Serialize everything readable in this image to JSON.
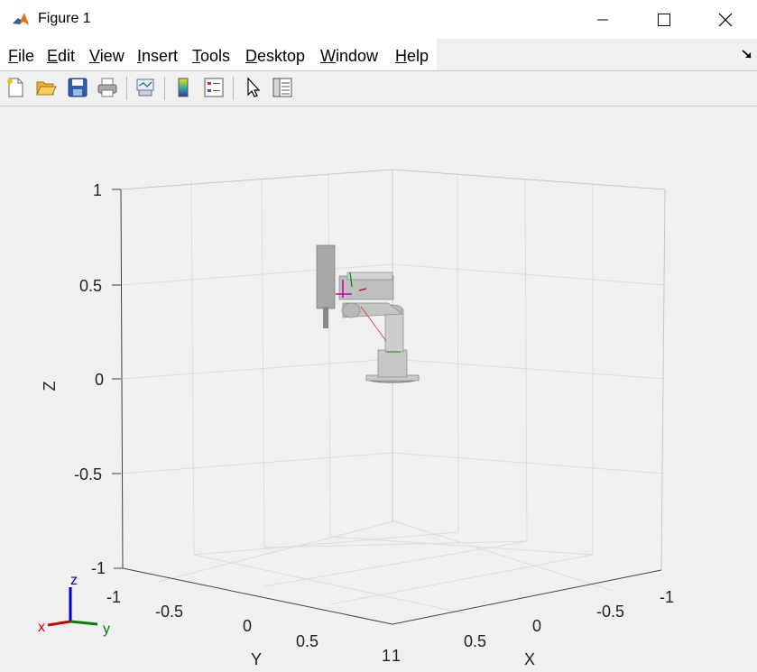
{
  "window": {
    "title": "Figure 1",
    "icon": "matlab-icon",
    "controls": [
      "minimize-icon",
      "maximize-icon",
      "close-icon"
    ]
  },
  "menu": [
    {
      "label": "File",
      "mnemonic": "F",
      "rest": "ile"
    },
    {
      "label": "Edit",
      "mnemonic": "E",
      "rest": "dit"
    },
    {
      "label": "View",
      "mnemonic": "V",
      "rest": "iew"
    },
    {
      "label": "Insert",
      "mnemonic": "I",
      "rest": "nsert"
    },
    {
      "label": "Tools",
      "mnemonic": "T",
      "rest": "ools"
    },
    {
      "label": "Desktop",
      "mnemonic": "D",
      "rest": "esktop"
    },
    {
      "label": "Window",
      "mnemonic": "W",
      "rest": "indow"
    },
    {
      "label": "Help",
      "mnemonic": "H",
      "rest": "elp"
    }
  ],
  "toolbar": {
    "buttons": [
      "new-figure-icon",
      "open-file-icon",
      "save-icon",
      "print-icon",
      "link-plot-icon",
      "insert-colorbar-icon",
      "insert-legend-icon",
      "edit-plot-icon",
      "property-inspector-icon"
    ]
  },
  "axes": {
    "z_label": "Z",
    "y_label": "Y",
    "x_label": "X",
    "z_ticks": [
      "1",
      "0.5",
      "0",
      "-0.5",
      "-1"
    ],
    "y_ticks": [
      "-1",
      "-0.5",
      "0",
      "0.5",
      "1"
    ],
    "x_ticks": [
      "1",
      "0.5",
      "0",
      "-0.5",
      "-1"
    ],
    "grid": true
  },
  "triad": {
    "z": "z",
    "x": "x",
    "y": "y",
    "z_color": "#0000c8",
    "x_color": "#d00000",
    "y_color": "#008000"
  },
  "robot_color": "#c0c0c0"
}
